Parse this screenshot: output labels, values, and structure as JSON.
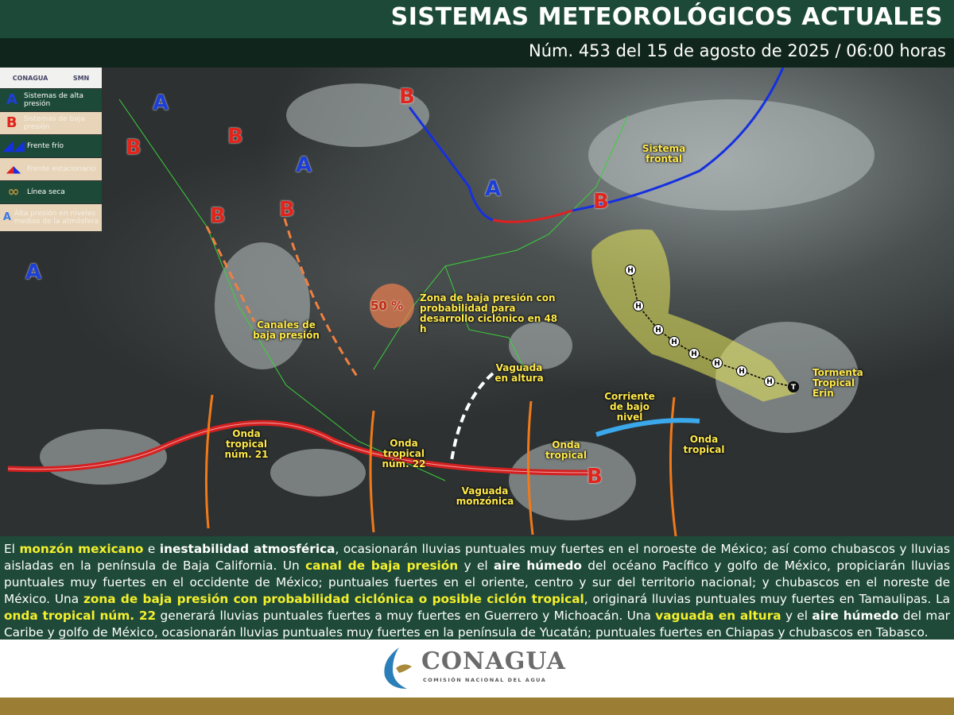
{
  "header": {
    "title": "SISTEMAS METEOROLÓGICOS ACTUALES",
    "subtitle": "Núm. 453 del 15 de agosto de 2025 / 06:00 horas"
  },
  "legend": {
    "logos": [
      "CONAGUA",
      "SMN"
    ],
    "items": [
      {
        "symbol": "A",
        "label": "Sistemas de alta presión",
        "icon": "high-pressure-icon"
      },
      {
        "symbol": "B",
        "label": "Sistemas de baja presión",
        "icon": "low-pressure-icon"
      },
      {
        "symbol": "",
        "label": "Frente frío",
        "icon": "cold-front-icon"
      },
      {
        "symbol": "",
        "label": "Frente estacionario",
        "icon": "stationary-front-icon"
      },
      {
        "symbol": "",
        "label": "Línea seca",
        "icon": "dry-line-icon"
      },
      {
        "symbol": "A",
        "label": "Alta presión en niveles medios de la atmósfera",
        "icon": "mid-level-high-icon"
      }
    ]
  },
  "map": {
    "pressure_labels": {
      "A": "A",
      "B": "B"
    },
    "labels": {
      "sistema_frontal": "Sistema frontal",
      "zona_baja": "Zona de baja presión con probabilidad para desarrollo ciclónico en 48 h",
      "probabilidad": "50 %",
      "canales": "Canales de baja presión",
      "vaguada_altura": "Vaguada en altura",
      "corriente": "Corriente de bajo nivel",
      "erin": "Tormenta Tropical Erin",
      "onda21": "Onda tropical núm. 21",
      "onda22": "Onda tropical núm. 22",
      "onda_a": "Onda tropical",
      "onda_b": "Onda tropical",
      "vaguada_monzonica": "Vaguada monzónica",
      "track_h": "H",
      "track_t": "T"
    },
    "colors": {
      "high": "#1d3fd6",
      "low": "#e0251c",
      "cold_front": "#1530e0",
      "tropical_wave": "#f07a1a",
      "monsoon_trough": "#d42020",
      "cone": "#e8e85a"
    }
  },
  "bulletin": [
    {
      "t": "El ",
      "s": ""
    },
    {
      "t": "monzón mexicano",
      "s": "y"
    },
    {
      "t": " e ",
      "s": ""
    },
    {
      "t": "inestabilidad atmosférica",
      "s": "b"
    },
    {
      "t": ", ocasionarán lluvias puntuales muy fuertes en el noroeste de México; así como chubascos y lluvias aisladas en la península de Baja California. Un ",
      "s": ""
    },
    {
      "t": "canal de baja presión",
      "s": "y"
    },
    {
      "t": " y el ",
      "s": ""
    },
    {
      "t": "aire húmedo",
      "s": "b"
    },
    {
      "t": " del océano Pacífico y golfo de México, propiciarán lluvias puntuales muy fuertes en el occidente de México; puntuales fuertes en el oriente, centro y sur del territorio nacional; y chubascos en el noreste de México. Una ",
      "s": ""
    },
    {
      "t": "zona de baja presión con probabilidad ciclónica o posible ciclón tropical",
      "s": "y"
    },
    {
      "t": ", originará lluvias puntuales muy fuertes en Tamaulipas. La ",
      "s": ""
    },
    {
      "t": "onda tropical núm. 22",
      "s": "y"
    },
    {
      "t": " generará lluvias puntuales fuertes a muy fuertes en Guerrero y Michoacán. Una ",
      "s": ""
    },
    {
      "t": "vaguada en altura",
      "s": "y"
    },
    {
      "t": " y el ",
      "s": ""
    },
    {
      "t": "aire húmedo",
      "s": "b"
    },
    {
      "t": " del mar Caribe y golfo de México, ocasionarán lluvias puntuales muy fuertes en la península de Yucatán; puntuales fuertes en Chiapas y chubascos en Tabasco.",
      "s": ""
    }
  ],
  "footer_logo": {
    "name": "CONAGUA",
    "subtitle": "COMISIÓN NACIONAL DEL AGUA"
  }
}
